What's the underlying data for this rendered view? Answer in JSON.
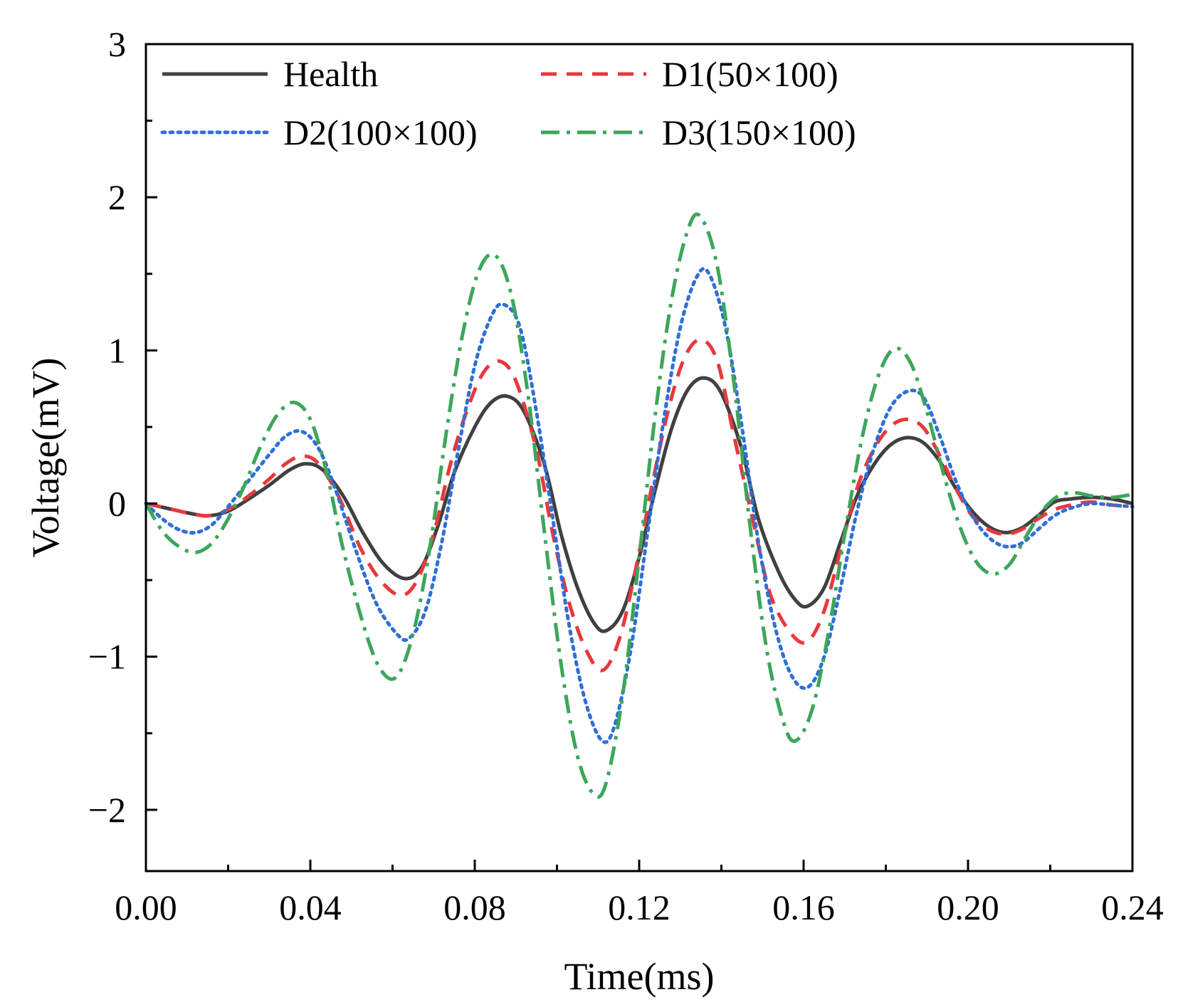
{
  "chart_data": {
    "type": "line",
    "title": "",
    "xlabel": "Time(ms)",
    "ylabel": "Voltage(mV)",
    "xlim": [
      0,
      0.24
    ],
    "ylim": [
      -2.4,
      3
    ],
    "xticks": [
      0.0,
      0.04,
      0.08,
      0.12,
      0.16,
      0.2,
      0.24
    ],
    "xtick_labels": [
      "0.00",
      "0.04",
      "0.08",
      "0.12",
      "0.16",
      "0.20",
      "0.24"
    ],
    "yticks": [
      -2,
      -1,
      0,
      1,
      2,
      3
    ],
    "ytick_labels": [
      "−2",
      "−1",
      "0",
      "1",
      "2",
      "3"
    ],
    "grid": false,
    "legend_position": "top",
    "series": [
      {
        "name": "Health",
        "color": "#404040",
        "dash": "solid",
        "points": [
          [
            0,
            0
          ],
          [
            0.005,
            -0.03
          ],
          [
            0.01,
            -0.06
          ],
          [
            0.015,
            -0.08
          ],
          [
            0.02,
            -0.05
          ],
          [
            0.025,
            0.03
          ],
          [
            0.03,
            0.12
          ],
          [
            0.035,
            0.22
          ],
          [
            0.039,
            0.26
          ],
          [
            0.043,
            0.22
          ],
          [
            0.048,
            0.05
          ],
          [
            0.053,
            -0.2
          ],
          [
            0.058,
            -0.4
          ],
          [
            0.063,
            -0.49
          ],
          [
            0.067,
            -0.42
          ],
          [
            0.071,
            -0.15
          ],
          [
            0.075,
            0.2
          ],
          [
            0.08,
            0.5
          ],
          [
            0.084,
            0.66
          ],
          [
            0.088,
            0.7
          ],
          [
            0.092,
            0.6
          ],
          [
            0.097,
            0.25
          ],
          [
            0.101,
            -0.2
          ],
          [
            0.105,
            -0.55
          ],
          [
            0.109,
            -0.78
          ],
          [
            0.112,
            -0.83
          ],
          [
            0.116,
            -0.7
          ],
          [
            0.12,
            -0.35
          ],
          [
            0.124,
            0.1
          ],
          [
            0.128,
            0.5
          ],
          [
            0.132,
            0.75
          ],
          [
            0.136,
            0.82
          ],
          [
            0.14,
            0.72
          ],
          [
            0.145,
            0.35
          ],
          [
            0.149,
            -0.1
          ],
          [
            0.154,
            -0.45
          ],
          [
            0.158,
            -0.63
          ],
          [
            0.161,
            -0.67
          ],
          [
            0.165,
            -0.55
          ],
          [
            0.169,
            -0.25
          ],
          [
            0.173,
            0.05
          ],
          [
            0.177,
            0.25
          ],
          [
            0.181,
            0.38
          ],
          [
            0.185,
            0.43
          ],
          [
            0.189,
            0.4
          ],
          [
            0.193,
            0.28
          ],
          [
            0.197,
            0.1
          ],
          [
            0.201,
            -0.05
          ],
          [
            0.205,
            -0.15
          ],
          [
            0.209,
            -0.19
          ],
          [
            0.213,
            -0.16
          ],
          [
            0.217,
            -0.08
          ],
          [
            0.221,
            0.01
          ],
          [
            0.225,
            0.03
          ],
          [
            0.23,
            0.04
          ],
          [
            0.235,
            0.03
          ],
          [
            0.24,
            0
          ]
        ]
      },
      {
        "name": "D1(50×100)",
        "color": "#e8383d",
        "dash": "dashed",
        "points": [
          [
            0,
            0
          ],
          [
            0.005,
            -0.03
          ],
          [
            0.01,
            -0.06
          ],
          [
            0.015,
            -0.08
          ],
          [
            0.02,
            -0.04
          ],
          [
            0.025,
            0.05
          ],
          [
            0.03,
            0.16
          ],
          [
            0.034,
            0.26
          ],
          [
            0.038,
            0.31
          ],
          [
            0.042,
            0.26
          ],
          [
            0.047,
            0.04
          ],
          [
            0.052,
            -0.28
          ],
          [
            0.057,
            -0.5
          ],
          [
            0.062,
            -0.6
          ],
          [
            0.066,
            -0.5
          ],
          [
            0.07,
            -0.2
          ],
          [
            0.074,
            0.25
          ],
          [
            0.078,
            0.6
          ],
          [
            0.082,
            0.85
          ],
          [
            0.086,
            0.93
          ],
          [
            0.09,
            0.8
          ],
          [
            0.095,
            0.35
          ],
          [
            0.099,
            -0.2
          ],
          [
            0.103,
            -0.65
          ],
          [
            0.107,
            -0.95
          ],
          [
            0.111,
            -1.09
          ],
          [
            0.115,
            -0.9
          ],
          [
            0.119,
            -0.45
          ],
          [
            0.123,
            0.1
          ],
          [
            0.127,
            0.6
          ],
          [
            0.131,
            0.95
          ],
          [
            0.135,
            1.07
          ],
          [
            0.139,
            0.93
          ],
          [
            0.143,
            0.45
          ],
          [
            0.148,
            -0.15
          ],
          [
            0.152,
            -0.6
          ],
          [
            0.157,
            -0.85
          ],
          [
            0.161,
            -0.9
          ],
          [
            0.165,
            -0.7
          ],
          [
            0.169,
            -0.3
          ],
          [
            0.173,
            0.1
          ],
          [
            0.177,
            0.35
          ],
          [
            0.181,
            0.5
          ],
          [
            0.185,
            0.55
          ],
          [
            0.189,
            0.5
          ],
          [
            0.193,
            0.32
          ],
          [
            0.197,
            0.1
          ],
          [
            0.201,
            -0.08
          ],
          [
            0.205,
            -0.17
          ],
          [
            0.209,
            -0.2
          ],
          [
            0.213,
            -0.17
          ],
          [
            0.217,
            -0.1
          ],
          [
            0.221,
            -0.04
          ],
          [
            0.225,
            -0.01
          ],
          [
            0.23,
            0.01
          ],
          [
            0.235,
            -0.01
          ],
          [
            0.24,
            -0.02
          ]
        ]
      },
      {
        "name": "D2(100×100)",
        "color": "#2f6fd8",
        "dash": "dotted",
        "points": [
          [
            0,
            0
          ],
          [
            0.004,
            -0.1
          ],
          [
            0.008,
            -0.17
          ],
          [
            0.012,
            -0.19
          ],
          [
            0.016,
            -0.14
          ],
          [
            0.02,
            -0.02
          ],
          [
            0.025,
            0.15
          ],
          [
            0.03,
            0.32
          ],
          [
            0.034,
            0.44
          ],
          [
            0.038,
            0.47
          ],
          [
            0.042,
            0.36
          ],
          [
            0.046,
            0.1
          ],
          [
            0.051,
            -0.3
          ],
          [
            0.056,
            -0.65
          ],
          [
            0.061,
            -0.85
          ],
          [
            0.064,
            -0.88
          ],
          [
            0.068,
            -0.7
          ],
          [
            0.072,
            -0.25
          ],
          [
            0.076,
            0.35
          ],
          [
            0.08,
            0.9
          ],
          [
            0.084,
            1.22
          ],
          [
            0.087,
            1.3
          ],
          [
            0.091,
            1.15
          ],
          [
            0.095,
            0.6
          ],
          [
            0.099,
            -0.1
          ],
          [
            0.103,
            -0.8
          ],
          [
            0.107,
            -1.3
          ],
          [
            0.111,
            -1.55
          ],
          [
            0.114,
            -1.45
          ],
          [
            0.118,
            -0.95
          ],
          [
            0.122,
            -0.2
          ],
          [
            0.126,
            0.55
          ],
          [
            0.13,
            1.15
          ],
          [
            0.134,
            1.48
          ],
          [
            0.137,
            1.5
          ],
          [
            0.141,
            1.15
          ],
          [
            0.145,
            0.5
          ],
          [
            0.149,
            -0.25
          ],
          [
            0.153,
            -0.8
          ],
          [
            0.157,
            -1.12
          ],
          [
            0.161,
            -1.2
          ],
          [
            0.165,
            -1.0
          ],
          [
            0.169,
            -0.55
          ],
          [
            0.173,
            -0.05
          ],
          [
            0.177,
            0.35
          ],
          [
            0.181,
            0.62
          ],
          [
            0.185,
            0.73
          ],
          [
            0.189,
            0.7
          ],
          [
            0.193,
            0.45
          ],
          [
            0.197,
            0.15
          ],
          [
            0.201,
            -0.08
          ],
          [
            0.205,
            -0.22
          ],
          [
            0.209,
            -0.28
          ],
          [
            0.213,
            -0.26
          ],
          [
            0.217,
            -0.17
          ],
          [
            0.221,
            -0.08
          ],
          [
            0.225,
            -0.03
          ],
          [
            0.23,
            0.0
          ],
          [
            0.235,
            -0.01
          ],
          [
            0.24,
            -0.02
          ]
        ]
      },
      {
        "name": "D3(150×100)",
        "color": "#3ca65a",
        "dash": "dash-dot",
        "points": [
          [
            0,
            0
          ],
          [
            0.004,
            -0.18
          ],
          [
            0.008,
            -0.28
          ],
          [
            0.012,
            -0.32
          ],
          [
            0.016,
            -0.26
          ],
          [
            0.02,
            -0.1
          ],
          [
            0.024,
            0.12
          ],
          [
            0.028,
            0.38
          ],
          [
            0.032,
            0.58
          ],
          [
            0.036,
            0.66
          ],
          [
            0.04,
            0.55
          ],
          [
            0.044,
            0.2
          ],
          [
            0.048,
            -0.3
          ],
          [
            0.053,
            -0.8
          ],
          [
            0.057,
            -1.08
          ],
          [
            0.061,
            -1.13
          ],
          [
            0.065,
            -0.85
          ],
          [
            0.069,
            -0.3
          ],
          [
            0.073,
            0.45
          ],
          [
            0.077,
            1.1
          ],
          [
            0.081,
            1.52
          ],
          [
            0.085,
            1.62
          ],
          [
            0.089,
            1.35
          ],
          [
            0.093,
            0.7
          ],
          [
            0.097,
            -0.2
          ],
          [
            0.101,
            -1.05
          ],
          [
            0.105,
            -1.65
          ],
          [
            0.109,
            -1.9
          ],
          [
            0.112,
            -1.82
          ],
          [
            0.116,
            -1.25
          ],
          [
            0.12,
            -0.35
          ],
          [
            0.124,
            0.6
          ],
          [
            0.128,
            1.35
          ],
          [
            0.132,
            1.8
          ],
          [
            0.135,
            1.87
          ],
          [
            0.139,
            1.55
          ],
          [
            0.143,
            0.8
          ],
          [
            0.147,
            -0.15
          ],
          [
            0.151,
            -0.95
          ],
          [
            0.155,
            -1.42
          ],
          [
            0.158,
            -1.55
          ],
          [
            0.162,
            -1.35
          ],
          [
            0.166,
            -0.85
          ],
          [
            0.17,
            -0.2
          ],
          [
            0.174,
            0.4
          ],
          [
            0.178,
            0.82
          ],
          [
            0.182,
            1.01
          ],
          [
            0.186,
            0.92
          ],
          [
            0.19,
            0.6
          ],
          [
            0.194,
            0.2
          ],
          [
            0.198,
            -0.15
          ],
          [
            0.202,
            -0.38
          ],
          [
            0.206,
            -0.46
          ],
          [
            0.21,
            -0.4
          ],
          [
            0.214,
            -0.22
          ],
          [
            0.218,
            -0.05
          ],
          [
            0.222,
            0.05
          ],
          [
            0.226,
            0.07
          ],
          [
            0.23,
            0.05
          ],
          [
            0.235,
            0.04
          ],
          [
            0.24,
            0.06
          ]
        ]
      }
    ]
  }
}
